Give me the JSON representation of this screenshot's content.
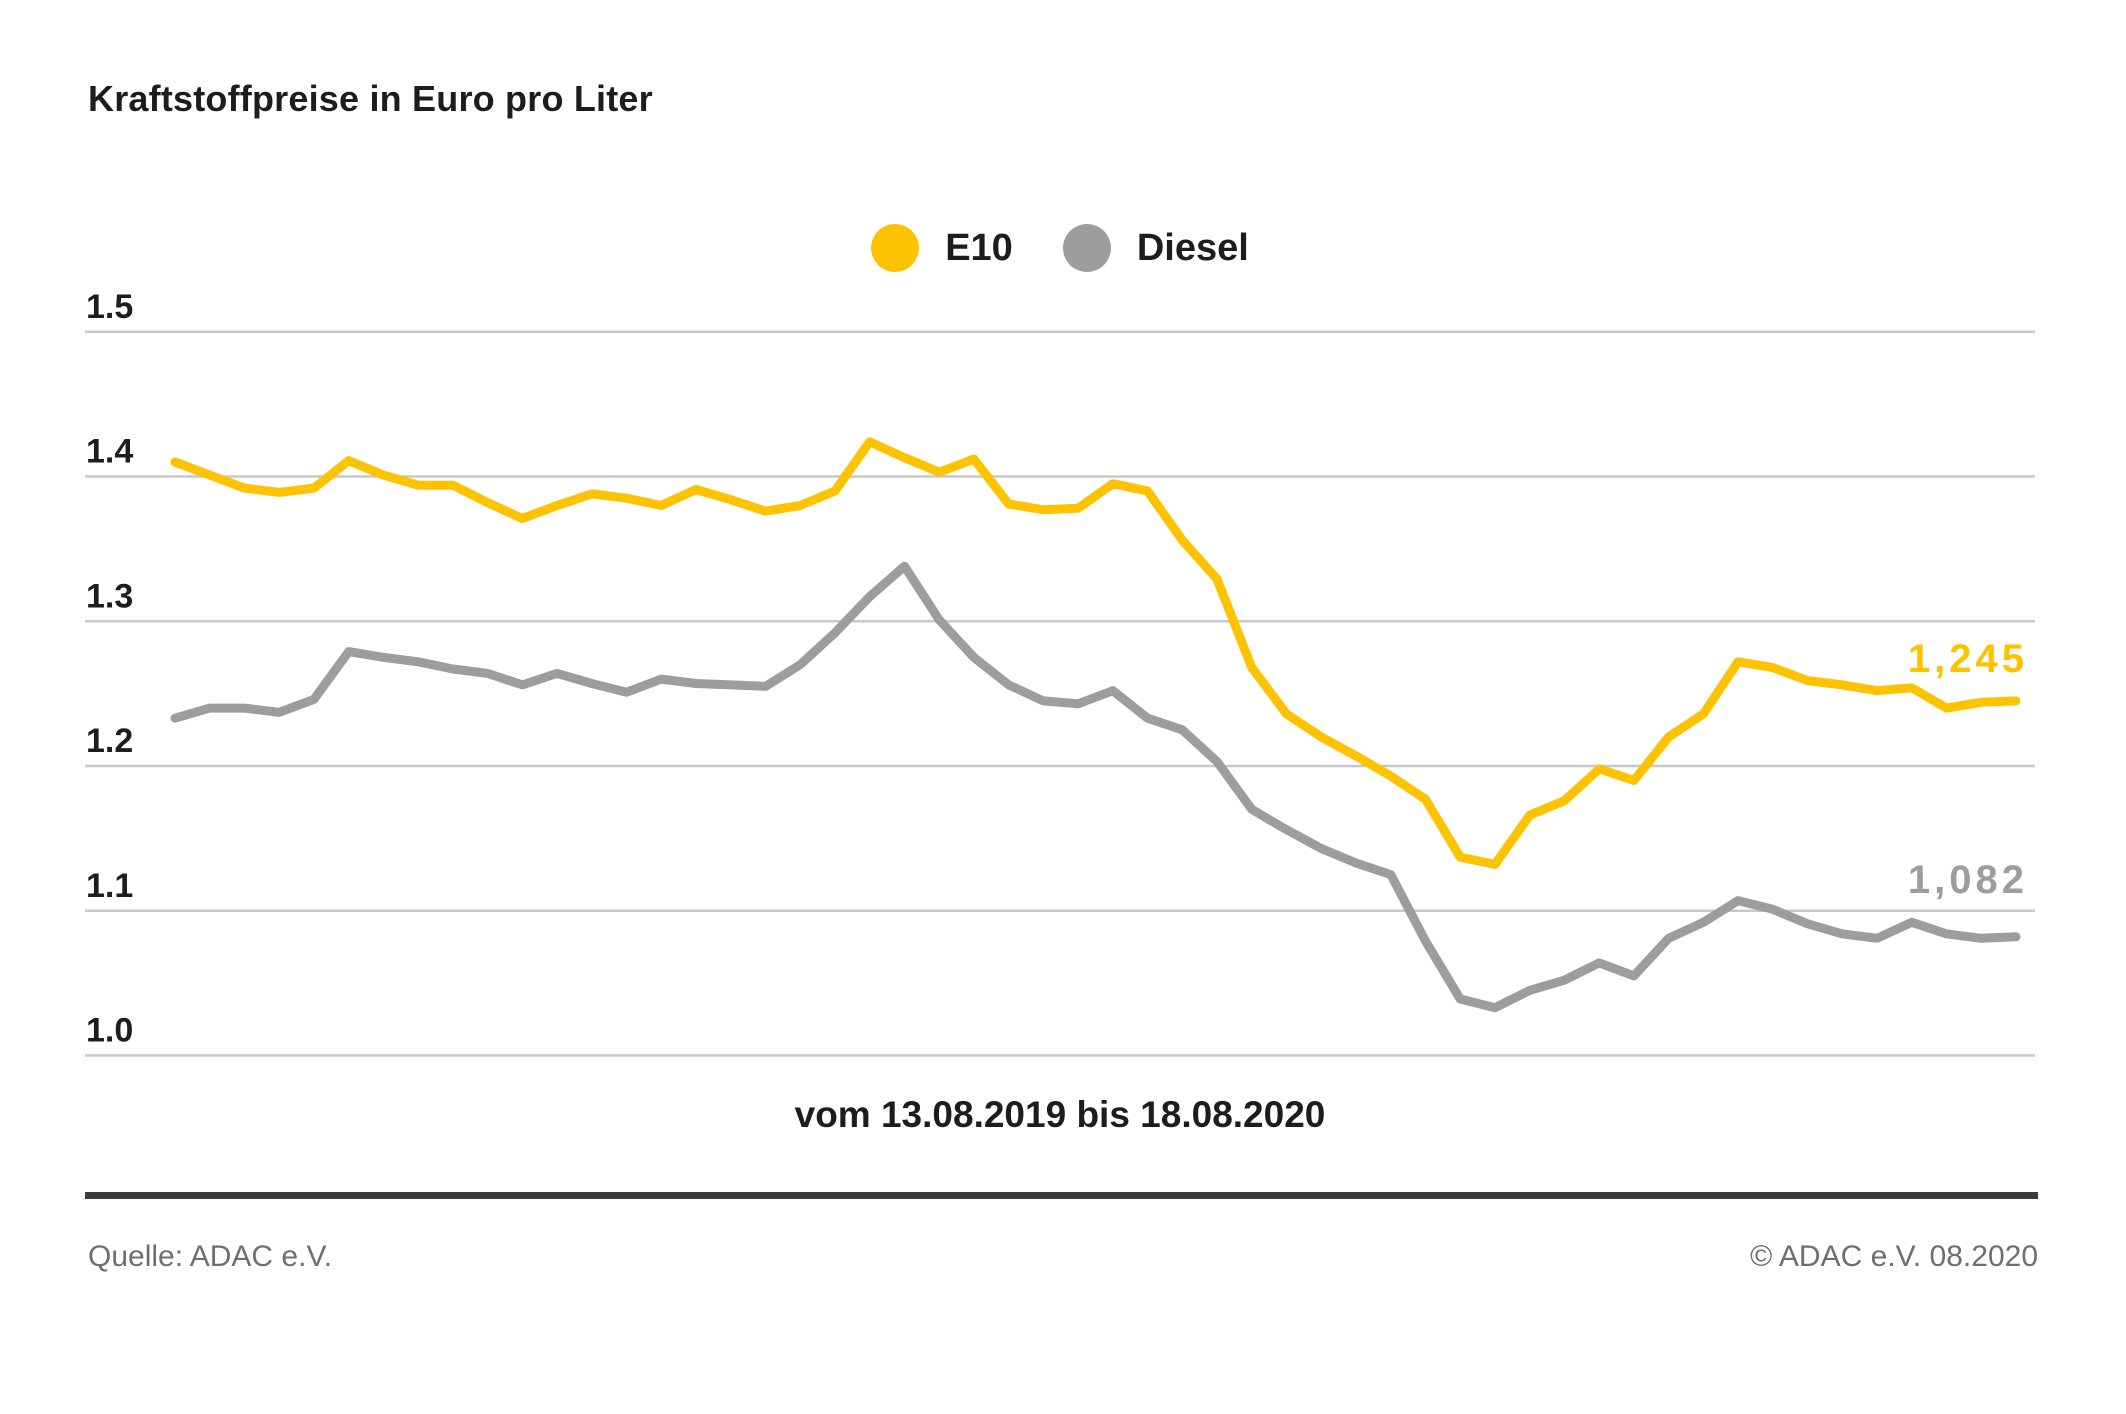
{
  "header": {
    "title": "Kraftstoffpreise in Euro pro Liter"
  },
  "legend": {
    "items": [
      {
        "label": "E10",
        "color": "#fdc300"
      },
      {
        "label": "Diesel",
        "color": "#9d9d9c"
      }
    ]
  },
  "footer": {
    "source": "Quelle: ADAC e.V.",
    "copyright": "© ADAC e.V. 08.2020"
  },
  "colors": {
    "e10": "#fdc300",
    "diesel": "#9d9d9c",
    "gridline": "#c8c8c8",
    "text_dark": "#1d1d1b",
    "footer_text": "#6f6f6e",
    "footer_rule": "#3c3c3b",
    "background": "#ffffff"
  },
  "chart_data": {
    "type": "line",
    "title": "Kraftstoffpreise in Euro pro Liter",
    "xlabel": "vom 13.08.2019 bis 18.08.2020",
    "ylabel": "",
    "x_start_date": "13.08.2019",
    "x_end_date": "18.08.2020",
    "x_unit": "week",
    "n_points": 54,
    "ylim": [
      1.0,
      1.5
    ],
    "yticks": [
      1.5,
      1.4,
      1.3,
      1.2,
      1.1,
      1.0
    ],
    "ytick_labels": [
      "1.5",
      "1.4",
      "1.3",
      "1.2",
      "1.1",
      "1.0"
    ],
    "grid": true,
    "legend_position": "top-center",
    "series": [
      {
        "name": "E10",
        "color": "#fdc300",
        "end_label": "1,245",
        "end_value": 1.245,
        "values": [
          1.41,
          1.401,
          1.392,
          1.389,
          1.392,
          1.411,
          1.401,
          1.394,
          1.394,
          1.382,
          1.371,
          1.38,
          1.388,
          1.385,
          1.38,
          1.391,
          1.384,
          1.376,
          1.38,
          1.39,
          1.424,
          1.413,
          1.403,
          1.412,
          1.381,
          1.377,
          1.378,
          1.395,
          1.39,
          1.356,
          1.329,
          1.268,
          1.236,
          1.22,
          1.207,
          1.193,
          1.177,
          1.137,
          1.132,
          1.166,
          1.176,
          1.198,
          1.19,
          1.22,
          1.236,
          1.272,
          1.268,
          1.259,
          1.256,
          1.252,
          1.254,
          1.24,
          1.244,
          1.245
        ]
      },
      {
        "name": "Diesel",
        "color": "#9d9d9c",
        "end_label": "1,082",
        "end_value": 1.082,
        "values": [
          1.233,
          1.24,
          1.24,
          1.237,
          1.246,
          1.279,
          1.275,
          1.272,
          1.267,
          1.264,
          1.256,
          1.264,
          1.257,
          1.251,
          1.26,
          1.257,
          1.256,
          1.255,
          1.27,
          1.292,
          1.317,
          1.338,
          1.301,
          1.275,
          1.256,
          1.245,
          1.243,
          1.252,
          1.233,
          1.225,
          1.203,
          1.17,
          1.156,
          1.143,
          1.133,
          1.125,
          1.079,
          1.039,
          1.033,
          1.045,
          1.052,
          1.064,
          1.055,
          1.081,
          1.092,
          1.107,
          1.101,
          1.091,
          1.084,
          1.081,
          1.092,
          1.084,
          1.081,
          1.082
        ]
      }
    ]
  }
}
